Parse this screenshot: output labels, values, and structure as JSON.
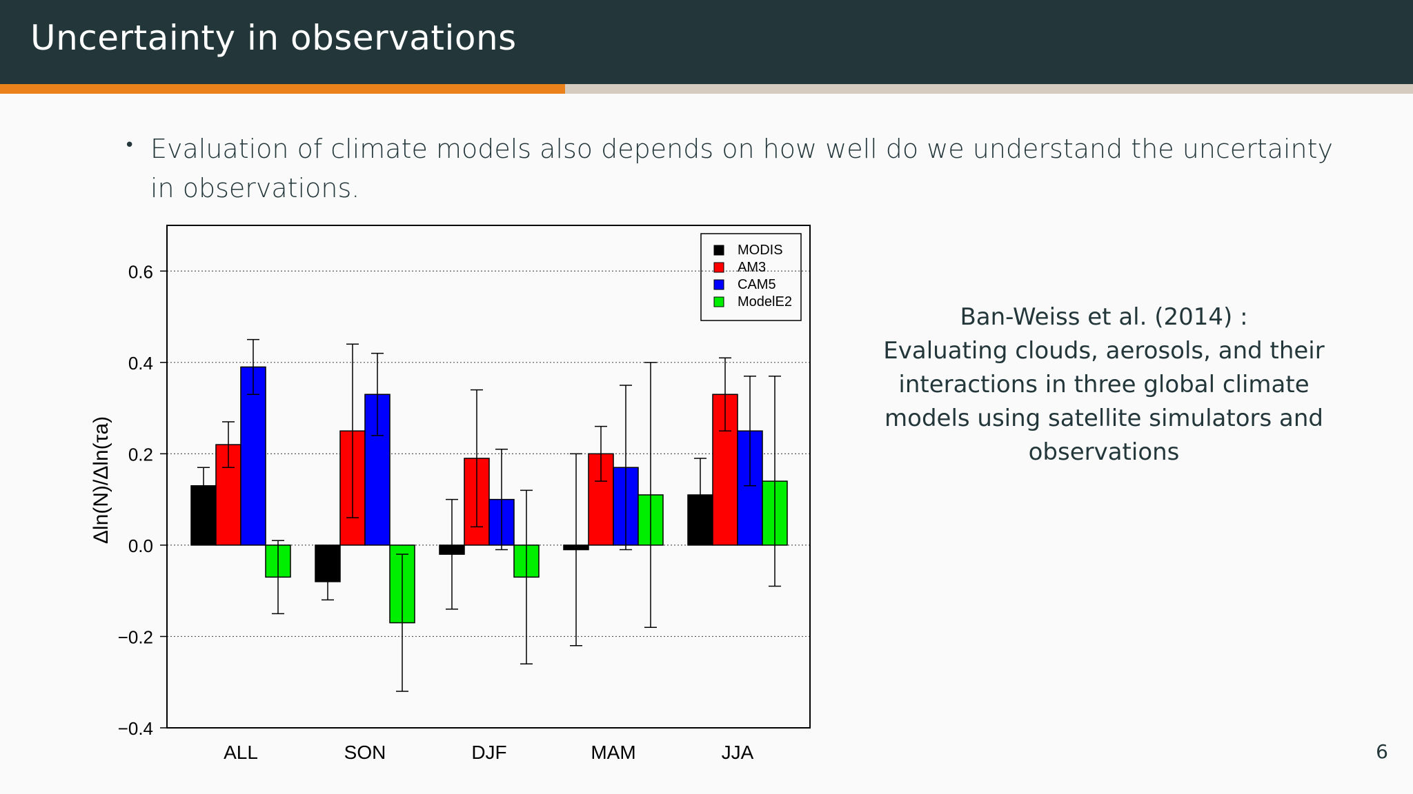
{
  "slide": {
    "title": "Uncertainty in observations",
    "bullet": "Evaluation of climate models also depends on how well do we understand the uncertainty in observations.",
    "citation": [
      "Ban-Weiss et al. (2014) :",
      "Evaluating clouds, aerosols, and their",
      "interactions in three global climate",
      "models using satellite simulators and",
      "observations"
    ],
    "page_number": "6",
    "progress_fraction": 0.4
  },
  "colors": {
    "header_bg": "#23373b",
    "accent": "#eb811b",
    "progress_bg": "#d6cbbf"
  },
  "chart_data": {
    "type": "bar",
    "categories": [
      "ALL",
      "SON",
      "DJF",
      "MAM",
      "JJA"
    ],
    "ylabel": "Δln(N)/Δln(τa)",
    "ylim": [
      -0.4,
      0.7
    ],
    "yticks": [
      -0.4,
      -0.2,
      0.0,
      0.2,
      0.4,
      0.6
    ],
    "ytick_labels": [
      "−0.4",
      "−0.2",
      "0.0",
      "0.2",
      "0.4",
      "0.6"
    ],
    "grid": "horizontal dotted",
    "legend_position": "top-right",
    "series": [
      {
        "name": "MODIS",
        "color": "#000000",
        "values": [
          0.13,
          -0.08,
          -0.02,
          -0.01,
          0.11
        ],
        "err_low": [
          null,
          -0.12,
          -0.14,
          -0.22,
          null
        ],
        "err_high": [
          0.17,
          null,
          0.1,
          0.2,
          0.19
        ]
      },
      {
        "name": "AM3",
        "color": "#ff0000",
        "values": [
          0.22,
          0.25,
          0.19,
          0.2,
          0.33
        ],
        "err_low": [
          0.17,
          0.06,
          0.04,
          0.14,
          0.25
        ],
        "err_high": [
          0.27,
          0.44,
          0.34,
          0.26,
          0.41
        ]
      },
      {
        "name": "CAM5",
        "color": "#0000ff",
        "values": [
          0.39,
          0.33,
          0.1,
          0.17,
          0.25
        ],
        "err_low": [
          0.33,
          0.24,
          -0.01,
          -0.01,
          0.13
        ],
        "err_high": [
          0.45,
          0.42,
          0.21,
          0.35,
          0.37
        ]
      },
      {
        "name": "ModelE2",
        "color": "#00ee00",
        "values": [
          -0.07,
          -0.17,
          -0.07,
          0.11,
          0.14
        ],
        "err_low": [
          -0.15,
          -0.32,
          -0.26,
          -0.18,
          -0.09
        ],
        "err_high": [
          0.01,
          -0.02,
          0.12,
          0.4,
          0.37
        ]
      }
    ]
  }
}
